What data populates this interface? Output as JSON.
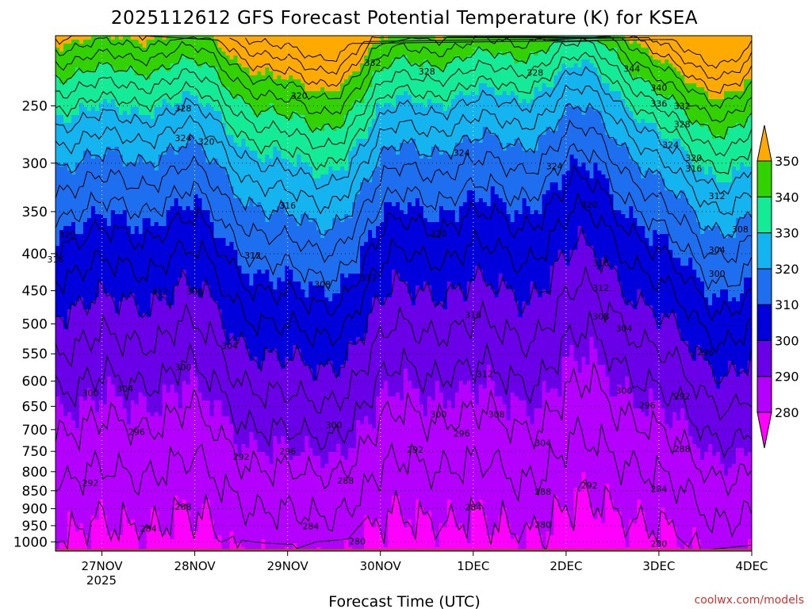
{
  "chart_data": {
    "type": "heatmap",
    "title": "2025112612 GFS Forecast Potential Temperature (K) for KSEA",
    "xlabel": "Forecast Time (UTC)",
    "ylabel": "",
    "credit": "coolwx.com/models",
    "y_axis": {
      "scale": "log",
      "inverted": true,
      "ticks": [
        250,
        300,
        350,
        400,
        450,
        500,
        550,
        600,
        650,
        700,
        750,
        800,
        850,
        900,
        950,
        1000
      ],
      "tick_labels": [
        "250",
        "300",
        "350",
        "400",
        "450",
        "500",
        "550",
        "600",
        "650",
        "700",
        "750",
        "800",
        "850",
        "900",
        "950",
        "1000"
      ],
      "ylim": [
        1030,
        200
      ]
    },
    "x_axis": {
      "ticks": [
        "2025-11-27",
        "2025-11-28",
        "2025-11-29",
        "2025-11-30",
        "2025-12-01",
        "2025-12-02",
        "2025-12-03",
        "2025-12-04"
      ],
      "tick_labels": [
        "27NOV",
        "28NOV",
        "29NOV",
        "30NOV",
        "1DEC",
        "2DEC",
        "3DEC",
        "4DEC"
      ],
      "year_label": "2025",
      "xlim": [
        "2025-11-26T12",
        "2025-12-04T00"
      ]
    },
    "grid": true,
    "colorbar": {
      "levels": [
        280,
        290,
        300,
        310,
        320,
        330,
        340,
        350
      ],
      "labels": [
        "280",
        "290",
        "300",
        "310",
        "320",
        "330",
        "340",
        "350"
      ],
      "colors": [
        "#ff00ff",
        "#b400ff",
        "#6a00e8",
        "#0000dd",
        "#1e6ef0",
        "#14b4f0",
        "#14eb96",
        "#32d200",
        "#aadc00",
        "#ffff00",
        "#ffaa00"
      ]
    },
    "ground_color": "#a0522d",
    "contour_interval": 4,
    "contour_labels": [
      {
        "v": "332",
        "d": "2025-11-29T22",
        "p": 218
      },
      {
        "v": "328",
        "d": "2025-11-30T12",
        "p": 224
      },
      {
        "v": "328",
        "d": "2025-12-01T16",
        "p": 225
      },
      {
        "v": "344",
        "d": "2025-12-02T17",
        "p": 222
      },
      {
        "v": "340",
        "d": "2025-12-03T00",
        "p": 236
      },
      {
        "v": "336",
        "d": "2025-12-03T00",
        "p": 248
      },
      {
        "v": "332",
        "d": "2025-12-03T06",
        "p": 250
      },
      {
        "v": "328",
        "d": "2025-12-03T06",
        "p": 265
      },
      {
        "v": "324",
        "d": "2025-12-03T03",
        "p": 283
      },
      {
        "v": "320",
        "d": "2025-12-03T09",
        "p": 295
      },
      {
        "v": "316",
        "d": "2025-12-03T09",
        "p": 305
      },
      {
        "v": "312",
        "d": "2025-12-03T15",
        "p": 333
      },
      {
        "v": "308",
        "d": "2025-12-03T21",
        "p": 370
      },
      {
        "v": "304",
        "d": "2025-12-03T15",
        "p": 395
      },
      {
        "v": "300",
        "d": "2025-12-03T15",
        "p": 426
      },
      {
        "v": "328",
        "d": "2025-11-27T21",
        "p": 252
      },
      {
        "v": "324",
        "d": "2025-11-27T21",
        "p": 277
      },
      {
        "v": "320",
        "d": "2025-11-28T03",
        "p": 280
      },
      {
        "v": "320",
        "d": "2025-11-29T03",
        "p": 242
      },
      {
        "v": "324",
        "d": "2025-11-30T21",
        "p": 290
      },
      {
        "v": "324",
        "d": "2025-12-01T21",
        "p": 303
      },
      {
        "v": "320",
        "d": "2025-12-02T06",
        "p": 342
      },
      {
        "v": "316",
        "d": "2025-11-29T00",
        "p": 343
      },
      {
        "v": "320",
        "d": "2025-11-26T15",
        "p": 376
      },
      {
        "v": "316",
        "d": "2025-11-26T12",
        "p": 407
      },
      {
        "v": "320",
        "d": "2025-11-30T15",
        "p": 375
      },
      {
        "v": "312",
        "d": "2025-11-28T15",
        "p": 402
      },
      {
        "v": "312",
        "d": "2025-11-27T15",
        "p": 451
      },
      {
        "v": "308",
        "d": "2025-11-28T00",
        "p": 451
      },
      {
        "v": "308",
        "d": "2025-11-29T09",
        "p": 441
      },
      {
        "v": "312",
        "d": "2025-11-29T21",
        "p": 432
      },
      {
        "v": "316",
        "d": "2025-12-02T09",
        "p": 412
      },
      {
        "v": "312",
        "d": "2025-12-02T09",
        "p": 446
      },
      {
        "v": "308",
        "d": "2025-12-02T09",
        "p": 488
      },
      {
        "v": "304",
        "d": "2025-12-02T15",
        "p": 507
      },
      {
        "v": "316",
        "d": "2025-12-01T00",
        "p": 486
      },
      {
        "v": "304",
        "d": "2025-11-28T09",
        "p": 536
      },
      {
        "v": "300",
        "d": "2025-11-27T21",
        "p": 574
      },
      {
        "v": "312",
        "d": "2025-12-01T03",
        "p": 586
      },
      {
        "v": "300",
        "d": "2025-11-26T21",
        "p": 623
      },
      {
        "v": "304",
        "d": "2025-11-27T06",
        "p": 614
      },
      {
        "v": "300",
        "d": "2025-11-30T15",
        "p": 667
      },
      {
        "v": "308",
        "d": "2025-12-01T06",
        "p": 667
      },
      {
        "v": "300",
        "d": "2025-11-29T12",
        "p": 690
      },
      {
        "v": "296",
        "d": "2025-11-27T09",
        "p": 705
      },
      {
        "v": "296",
        "d": "2025-11-30T21",
        "p": 708
      },
      {
        "v": "304",
        "d": "2025-12-01T18",
        "p": 730
      },
      {
        "v": "292",
        "d": "2025-11-30T09",
        "p": 746
      },
      {
        "v": "296",
        "d": "2025-11-29T00",
        "p": 750
      },
      {
        "v": "292",
        "d": "2025-11-28T12",
        "p": 763
      },
      {
        "v": "300",
        "d": "2025-12-02T15",
        "p": 618
      },
      {
        "v": "296",
        "d": "2025-12-02T21",
        "p": 648
      },
      {
        "v": "292",
        "d": "2025-12-03T06",
        "p": 629
      },
      {
        "v": "288",
        "d": "2025-12-03T06",
        "p": 744
      },
      {
        "v": "296",
        "d": "2025-12-03T12",
        "p": 547
      },
      {
        "v": "292",
        "d": "2025-11-26T21",
        "p": 829
      },
      {
        "v": "288",
        "d": "2025-11-29T15",
        "p": 823
      },
      {
        "v": "288",
        "d": "2025-12-01T18",
        "p": 853
      },
      {
        "v": "292",
        "d": "2025-12-02T06",
        "p": 836
      },
      {
        "v": "284",
        "d": "2025-12-03T00",
        "p": 845
      },
      {
        "v": "288",
        "d": "2025-11-27T21",
        "p": 894
      },
      {
        "v": "284",
        "d": "2025-12-01T00",
        "p": 896
      },
      {
        "v": "284",
        "d": "2025-11-27T12",
        "p": 958
      },
      {
        "v": "284",
        "d": "2025-11-29T06",
        "p": 951
      },
      {
        "v": "280",
        "d": "2025-12-01T18",
        "p": 947
      },
      {
        "v": "280",
        "d": "2025-11-29T18",
        "p": 998
      },
      {
        "v": "280",
        "d": "2025-12-03T00",
        "p": 1005
      }
    ]
  }
}
